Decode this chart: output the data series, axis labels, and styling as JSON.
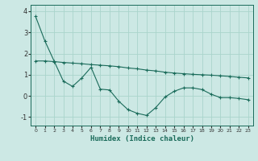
{
  "xlabel": "Humidex (Indice chaleur)",
  "background_color": "#cce8e4",
  "grid_color": "#aad4cc",
  "line_color": "#1a6b5a",
  "xlim": [
    -0.5,
    23.5
  ],
  "ylim": [
    -1.4,
    4.3
  ],
  "yticks": [
    -1,
    0,
    1,
    2,
    3,
    4
  ],
  "xticks": [
    0,
    1,
    2,
    3,
    4,
    5,
    6,
    7,
    8,
    9,
    10,
    11,
    12,
    13,
    14,
    15,
    16,
    17,
    18,
    19,
    20,
    21,
    22,
    23
  ],
  "line1_x": [
    0,
    1,
    2,
    3,
    4,
    5,
    6,
    7,
    8,
    9,
    10,
    11,
    12,
    13,
    14,
    15,
    16,
    17,
    18,
    19,
    20,
    21,
    22,
    23
  ],
  "line1_y": [
    3.75,
    2.6,
    1.65,
    0.7,
    0.45,
    0.85,
    1.35,
    0.32,
    0.28,
    -0.25,
    -0.65,
    -0.82,
    -0.92,
    -0.55,
    -0.05,
    0.22,
    0.38,
    0.38,
    0.3,
    0.08,
    -0.08,
    -0.08,
    -0.12,
    -0.18
  ],
  "line2_x": [
    0,
    1,
    2,
    3,
    4,
    5,
    6,
    7,
    8,
    9,
    10,
    11,
    12,
    13,
    14,
    15,
    16,
    17,
    18,
    19,
    20,
    21,
    22,
    23
  ],
  "line2_y": [
    1.65,
    1.65,
    1.62,
    1.58,
    1.55,
    1.52,
    1.48,
    1.45,
    1.42,
    1.38,
    1.32,
    1.28,
    1.22,
    1.18,
    1.12,
    1.08,
    1.05,
    1.02,
    1.0,
    0.98,
    0.95,
    0.92,
    0.88,
    0.85
  ]
}
